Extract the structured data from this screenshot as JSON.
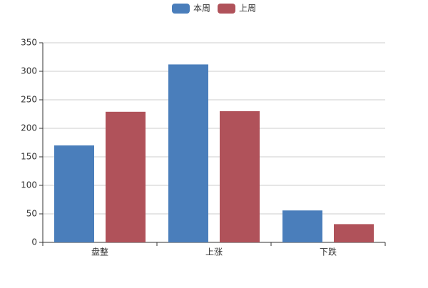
{
  "chart_data": {
    "type": "bar",
    "categories": [
      "盘整",
      "上涨",
      "下跌"
    ],
    "series": [
      {
        "name": "本周",
        "color": "#4a7ebb",
        "values": [
          170,
          312,
          56
        ]
      },
      {
        "name": "上周",
        "color": "#b0525a",
        "values": [
          229,
          230,
          32
        ]
      }
    ],
    "ylim": [
      0,
      350
    ],
    "yticks": [
      0,
      50,
      100,
      150,
      200,
      250,
      300,
      350
    ],
    "grid": true,
    "legend": "top"
  }
}
